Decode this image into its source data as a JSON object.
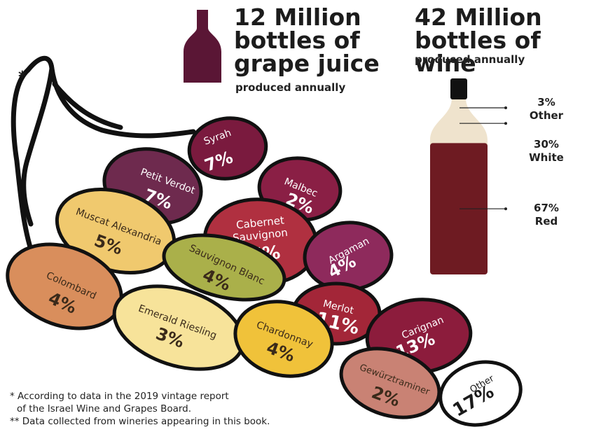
{
  "juice": {
    "headline": [
      "12 Million",
      "bottles of",
      "grape juice"
    ],
    "sub": "produced annually"
  },
  "wine": {
    "headline": [
      "42 Million",
      "bottles of wine"
    ],
    "sub": "produced annually"
  },
  "star": "*",
  "footnotes": [
    "* According to data in the 2019 vintage report",
    "of the Israel Wine and Grapes Board.",
    "** Data collected from wineries appearing in this book."
  ],
  "chart_data": [
    {
      "type": "pie",
      "categories": [
        "Syrah",
        "Petit Verdot",
        "Malbec",
        "Muscat Alexandria",
        "Cabernet Sauvignon",
        "Argaman",
        "Colombard",
        "Sauvignon Blanc",
        "Merlot",
        "Emerald Riesling",
        "Chardonnay",
        "Carignan",
        "Gewürztraminer",
        "Other"
      ],
      "values": [
        7,
        7,
        2,
        5,
        17,
        4,
        4,
        4,
        11,
        3,
        4,
        13,
        2,
        17
      ],
      "value_labels": [
        "7%",
        "7%",
        "2%",
        "5%",
        "17%",
        "4%",
        "4%",
        "4%",
        "11%",
        "3%",
        "4%",
        "13%",
        "2%",
        "17%"
      ],
      "colors": [
        "#7a1a3e",
        "#6e2a4e",
        "#8a1f45",
        "#f0c96e",
        "#b03040",
        "#8e2a5c",
        "#d98e5c",
        "#aab04a",
        "#a32638",
        "#f7e39a",
        "#f0c23a",
        "#8c1c3c",
        "#c98274",
        "#ffffff"
      ]
    },
    {
      "type": "bar",
      "categories": [
        "Other",
        "White",
        "Red"
      ],
      "values": [
        3,
        30,
        67
      ],
      "value_labels": [
        "3%",
        "30%",
        "67%"
      ],
      "colors": [
        "#efe3cd",
        "#efe3cd",
        "#6e1b22"
      ]
    }
  ]
}
